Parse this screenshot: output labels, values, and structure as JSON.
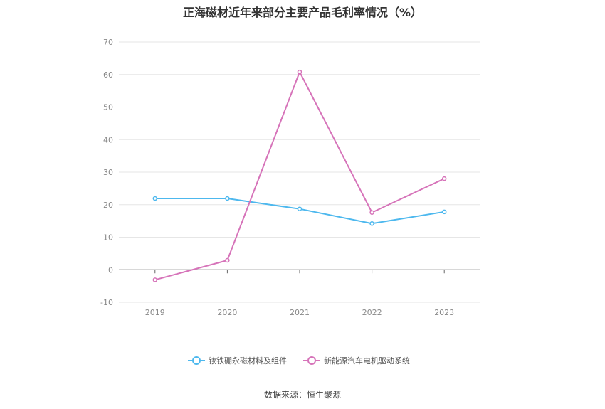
{
  "chart_data": {
    "type": "line",
    "title": "正海磁材近年来部分主要产品毛利率情况（%）",
    "x": [
      "2019",
      "2020",
      "2021",
      "2022",
      "2023"
    ],
    "ylim": [
      -10,
      70
    ],
    "yticks": [
      -10,
      0,
      10,
      20,
      30,
      40,
      50,
      60,
      70
    ],
    "grid": true,
    "legend_position": "bottom-center",
    "series": [
      {
        "name": "钕铁硼永磁材料及组件",
        "color": "#4db8ee",
        "values": [
          21.9,
          21.9,
          18.7,
          14.2,
          17.8
        ]
      },
      {
        "name": "新能源汽车电机驱动系统",
        "color": "#d673b9",
        "values": [
          -3.1,
          2.9,
          60.8,
          17.6,
          28.0
        ]
      }
    ]
  },
  "source": "数据来源：恒生聚源"
}
